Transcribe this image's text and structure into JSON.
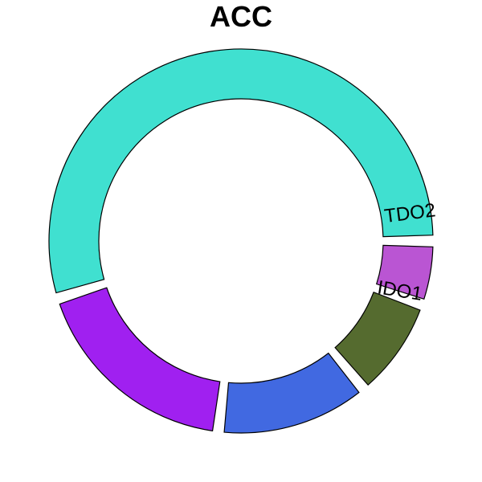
{
  "chart_data": {
    "type": "pie",
    "variant": "donut",
    "title": "ACC",
    "slices": [
      {
        "label": "TDO2",
        "value": 51,
        "color": "#40E0D0"
      },
      {
        "label": "",
        "value": 17,
        "color": "#A020F0"
      },
      {
        "label": "",
        "value": 12,
        "color": "#4169E1"
      },
      {
        "label": "",
        "value": 8,
        "color": "#556B2F"
      },
      {
        "label": "IDO1",
        "value": 5,
        "color": "#BA55D3"
      }
    ],
    "legend": "none"
  }
}
